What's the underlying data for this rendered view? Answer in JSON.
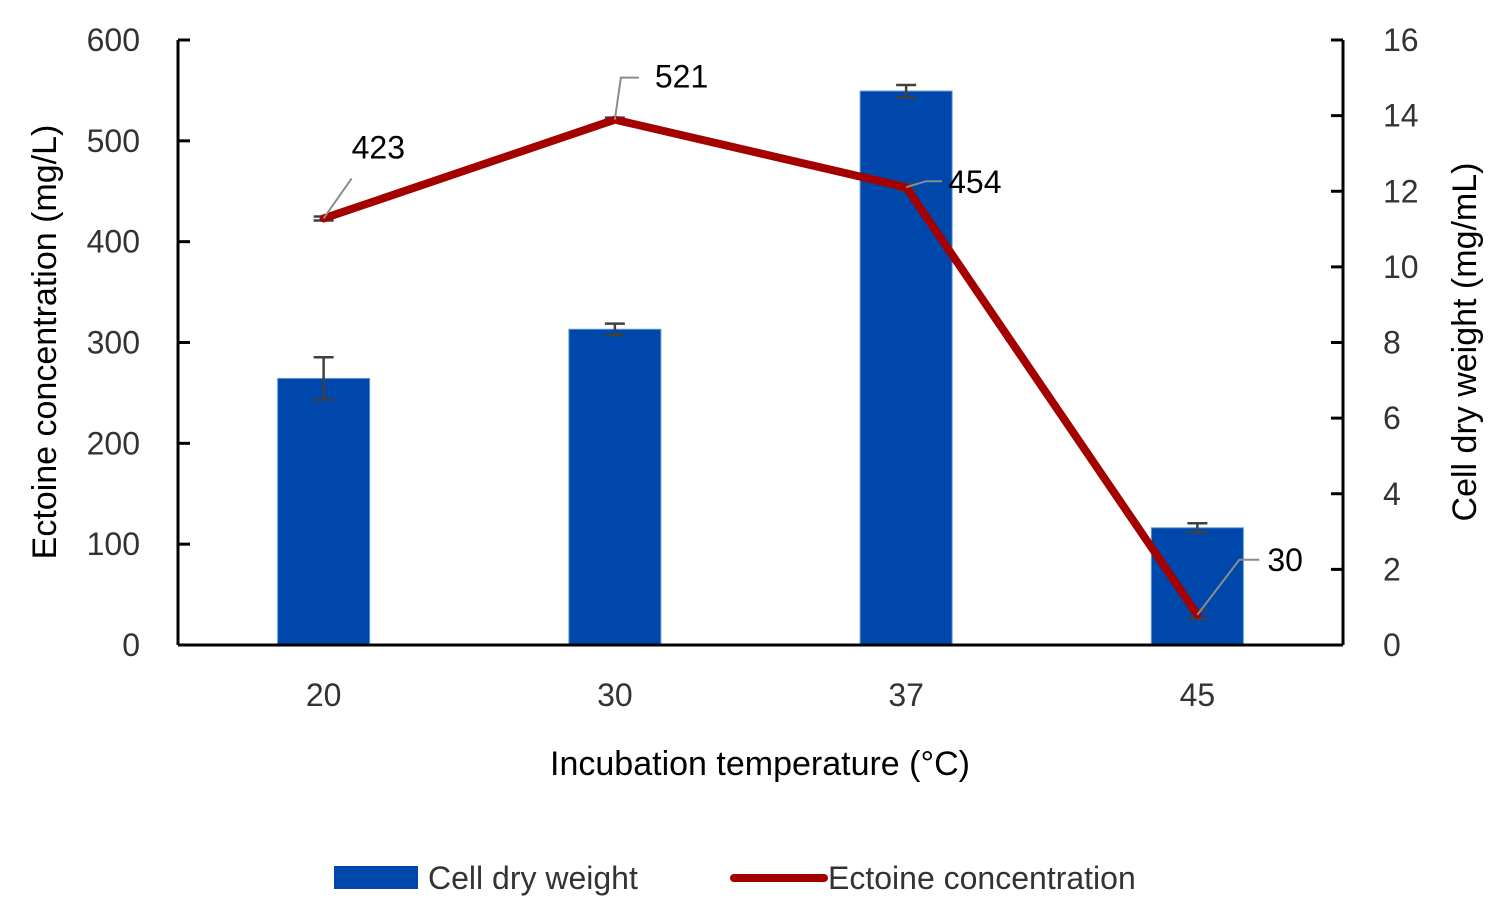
{
  "chart_data": {
    "type": "bar+line",
    "title": "",
    "categories": [
      "20",
      "30",
      "37",
      "45"
    ],
    "xlabel": "Incubation temperature (°C)",
    "ylabel_left": "Ectoine concentration (mg/L)",
    "ylabel_right": "Cell dry weight (mg/mL)",
    "y_left": {
      "min": 0,
      "max": 600,
      "ticks": [
        "0",
        "100",
        "200",
        "300",
        "400",
        "500",
        "600"
      ]
    },
    "y_right": {
      "min": 0,
      "max": 16,
      "ticks": [
        "0",
        "2",
        "4",
        "6",
        "8",
        "10",
        "12",
        "14",
        "16"
      ]
    },
    "grid": false,
    "legend_position": "bottom",
    "series": [
      {
        "name": "Cell dry weight",
        "type": "bar",
        "axis": "right",
        "color": "#0047AB",
        "values": [
          7.05,
          8.35,
          14.65,
          3.1
        ],
        "errors": [
          0.56,
          0.15,
          0.16,
          0.12
        ]
      },
      {
        "name": "Ectoine concentration",
        "type": "line",
        "axis": "left",
        "color": "#A50000",
        "values": [
          423,
          521,
          454,
          30
        ],
        "errors": [
          2,
          2,
          3,
          4
        ],
        "data_labels": [
          "423",
          "521",
          "454",
          "30"
        ]
      }
    ]
  }
}
